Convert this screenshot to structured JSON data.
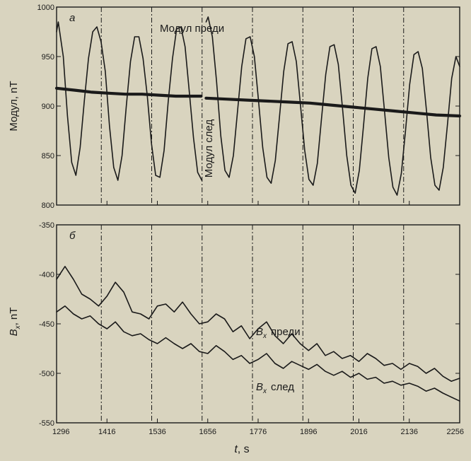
{
  "chart_data": [
    {
      "panel_label": "а",
      "type": "line",
      "ylabel": "Модул, nT",
      "ylim": [
        800,
        1000
      ],
      "yticks": [
        "800",
        "850",
        "900",
        "950",
        "1000"
      ],
      "xlim": [
        1296,
        2256
      ],
      "annotations": [
        "Модул преди",
        "Модул след"
      ],
      "series": [
        {
          "name": "Модул преди",
          "segments": [
            {
              "x": [
                1296,
                1300,
                1312,
                1322,
                1332,
                1342,
                1352,
                1362,
                1372,
                1382,
                1392,
                1402,
                1412,
                1422,
                1432
              ],
              "y": [
                975,
                985,
                950,
                890,
                843,
                830,
                858,
                905,
                948,
                975,
                980,
                965,
                935,
                880,
                838
              ]
            },
            {
              "x": [
                1432,
                1442,
                1452,
                1462,
                1472,
                1482,
                1492,
                1502,
                1512,
                1522,
                1532,
                1542,
                1552,
                1562,
                1572,
                1582,
                1592,
                1602,
                1612
              ],
              "y": [
                838,
                825,
                850,
                900,
                945,
                970,
                970,
                948,
                910,
                862,
                830,
                828,
                855,
                905,
                948,
                978,
                980,
                960,
                915
              ]
            },
            {
              "x": [
                1612,
                1622,
                1632,
                1642
              ],
              "y": [
                915,
                868,
                833,
                825
              ]
            },
            {
              "x": [
                1652,
                1657,
                1667,
                1677,
                1687,
                1697,
                1707,
                1717,
                1727,
                1737,
                1747,
                1757,
                1767,
                1777,
                1787,
                1797,
                1807,
                1817,
                1827,
                1837,
                1847,
                1857,
                1867,
                1877,
                1887,
                1897,
                1907,
                1917,
                1927,
                1937,
                1947,
                1957,
                1967,
                1977,
                1987,
                1997,
                2007,
                2017,
                2027,
                2037,
                2047,
                2057,
                2067,
                2077,
                2087,
                2097,
                2107,
                2117,
                2127,
                2137,
                2147,
                2157,
                2167,
                2177,
                2187,
                2197,
                2207,
                2217,
                2227,
                2237,
                2247,
                2256
              ],
              "y": [
                985,
                990,
                970,
                925,
                870,
                835,
                828,
                850,
                895,
                940,
                968,
                970,
                950,
                905,
                858,
                828,
                822,
                845,
                890,
                935,
                963,
                965,
                945,
                900,
                855,
                826,
                820,
                842,
                888,
                932,
                960,
                962,
                942,
                898,
                850,
                820,
                812,
                835,
                880,
                928,
                958,
                960,
                940,
                895,
                848,
                818,
                810,
                832,
                875,
                922,
                952,
                955,
                938,
                895,
                848,
                820,
                815,
                838,
                882,
                928,
                950,
                940
              ]
            }
          ]
        },
        {
          "name": "Модул след",
          "segments": [
            {
              "x": [
                1296,
                1340,
                1380,
                1420,
                1460,
                1500,
                1540,
                1580,
                1620,
                1640
              ],
              "y": [
                918,
                916,
                914,
                913,
                912,
                912,
                911,
                910,
                910,
                910
              ]
            },
            {
              "x": [
                1652,
                1700,
                1750,
                1800,
                1850,
                1900,
                1950,
                2000,
                2050,
                2100,
                2150,
                2200,
                2256
              ],
              "y": [
                908,
                907,
                906,
                905,
                904,
                903,
                901,
                899,
                897,
                895,
                893,
                891,
                890
              ]
            }
          ]
        }
      ]
    },
    {
      "panel_label": "б",
      "type": "line",
      "ylabel": "Bx, nT",
      "ylabel_var": "B",
      "ylabel_sub": "x",
      "ylabel_unit": ", nT",
      "ylim": [
        -550,
        -350
      ],
      "yticks": [
        "-550",
        "-500",
        "-450",
        "-400",
        "-350"
      ],
      "xlim": [
        1296,
        2256
      ],
      "xlabel": "t, s",
      "xlabel_var": "t",
      "xlabel_unit": ", s",
      "xticks": [
        "1296",
        "1416",
        "1536",
        "1656",
        "1776",
        "1896",
        "2016",
        "2136",
        "2256"
      ],
      "series": [
        {
          "name": "Bx преди",
          "label_var": "B",
          "label_sub": "x",
          "label_word": "преди",
          "x": [
            1296,
            1316,
            1336,
            1356,
            1376,
            1396,
            1416,
            1436,
            1456,
            1476,
            1496,
            1516,
            1536,
            1556,
            1576,
            1596,
            1616,
            1636,
            1656,
            1676,
            1696,
            1716,
            1736,
            1756,
            1776,
            1796,
            1816,
            1836,
            1856,
            1876,
            1896,
            1916,
            1936,
            1956,
            1976,
            1996,
            2016,
            2036,
            2056,
            2076,
            2096,
            2116,
            2136,
            2156,
            2176,
            2196,
            2216,
            2236,
            2256
          ],
          "y": [
            -405,
            -392,
            -405,
            -420,
            -425,
            -432,
            -422,
            -408,
            -418,
            -438,
            -440,
            -445,
            -432,
            -430,
            -438,
            -428,
            -440,
            -450,
            -448,
            -440,
            -445,
            -458,
            -452,
            -465,
            -455,
            -448,
            -462,
            -470,
            -460,
            -470,
            -477,
            -470,
            -482,
            -478,
            -485,
            -482,
            -488,
            -480,
            -485,
            -492,
            -490,
            -496,
            -490,
            -493,
            -500,
            -495,
            -503,
            -508,
            -505
          ]
        },
        {
          "name": "Bx след",
          "label_var": "B",
          "label_sub": "x",
          "label_word": "след",
          "x": [
            1296,
            1316,
            1336,
            1356,
            1376,
            1396,
            1416,
            1436,
            1456,
            1476,
            1496,
            1516,
            1536,
            1556,
            1576,
            1596,
            1616,
            1636,
            1656,
            1676,
            1696,
            1716,
            1736,
            1756,
            1776,
            1796,
            1816,
            1836,
            1856,
            1876,
            1896,
            1916,
            1936,
            1956,
            1976,
            1996,
            2016,
            2036,
            2056,
            2076,
            2096,
            2116,
            2136,
            2156,
            2176,
            2196,
            2216,
            2236,
            2256
          ],
          "y": [
            -438,
            -432,
            -440,
            -445,
            -442,
            -450,
            -455,
            -448,
            -458,
            -462,
            -460,
            -466,
            -470,
            -464,
            -470,
            -475,
            -470,
            -478,
            -480,
            -472,
            -478,
            -486,
            -482,
            -490,
            -486,
            -480,
            -490,
            -495,
            -488,
            -492,
            -496,
            -491,
            -498,
            -502,
            -498,
            -504,
            -500,
            -506,
            -504,
            -510,
            -508,
            -512,
            -510,
            -513,
            -518,
            -515,
            -520,
            -524,
            -528
          ]
        }
      ]
    }
  ]
}
